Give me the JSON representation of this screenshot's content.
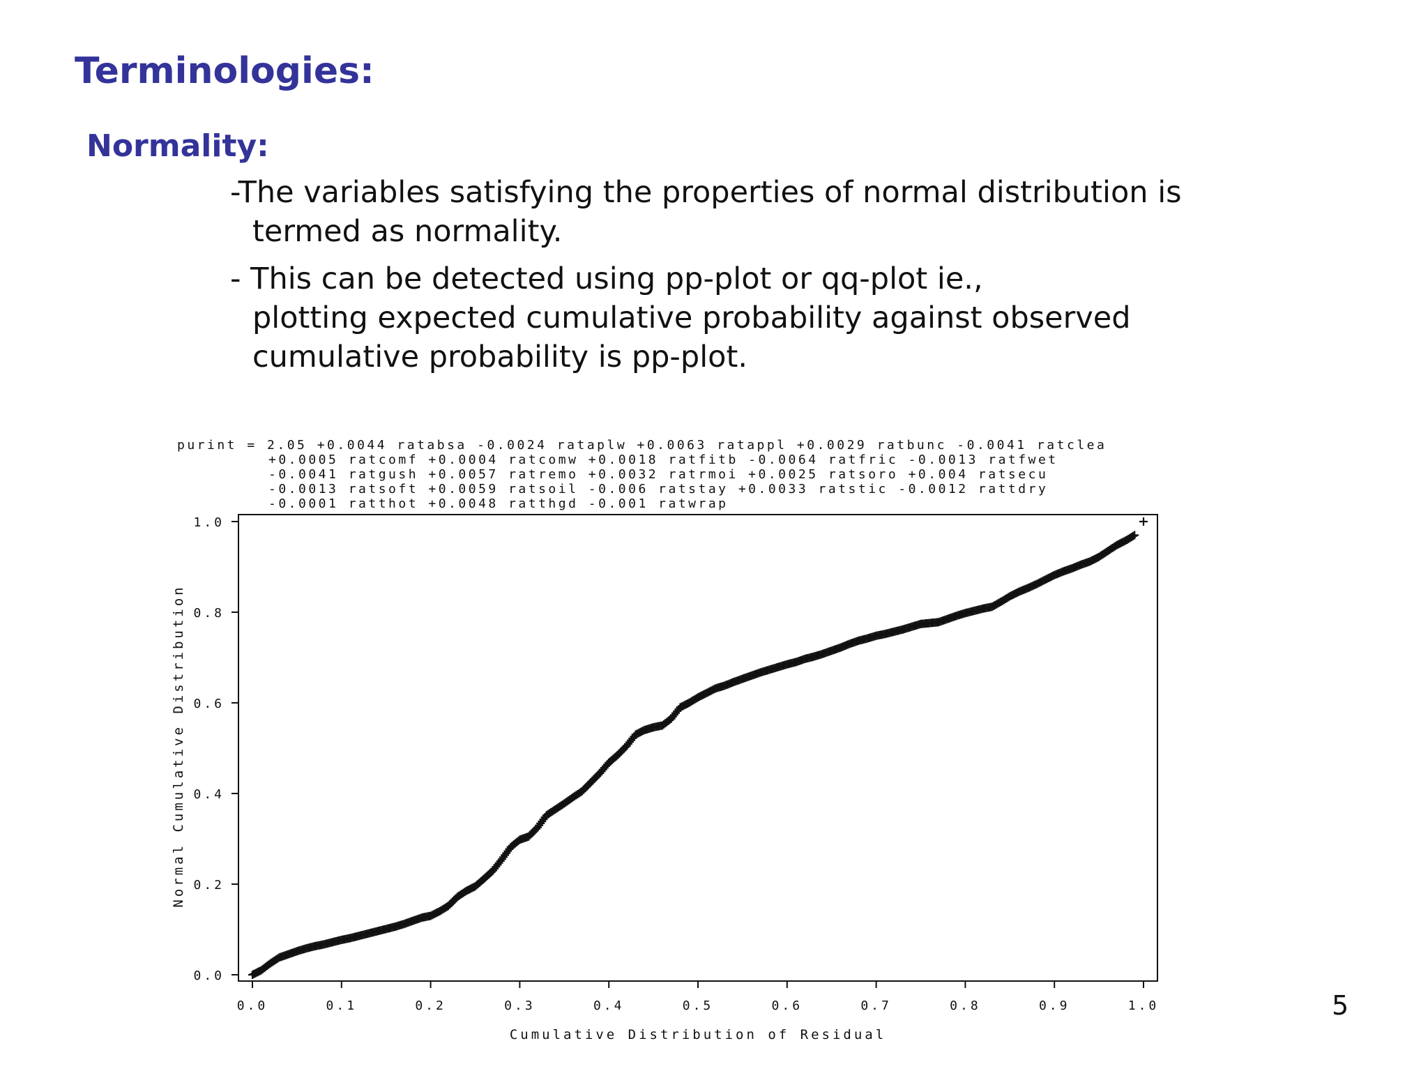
{
  "slide": {
    "title": "Terminologies:",
    "subtitle": "Normality:",
    "bullets": [
      {
        "line1": "-The variables satisfying the properties of normal distribution is",
        "line2": "termed as normality."
      },
      {
        "line1": "- This can be detected using pp-plot or qq-plot ie.,",
        "line2": "plotting expected cumulative probability against observed",
        "line3": "cumulative probability is pp-plot."
      }
    ],
    "page_number": "5"
  },
  "chart_data": {
    "type": "scatter",
    "marker": "+",
    "equation_lines": [
      "purint = 2.05 +0.0044 ratabsa -0.0024 rataplw +0.0063 ratappl +0.0029 ratbunc -0.0041 ratclea",
      "+0.0005 ratcomf +0.0004 ratcomw +0.0018 ratfitb -0.0064 ratfric -0.0013 ratfwet",
      "-0.0041 ratgush +0.0057 ratremo +0.0032 ratrmoi +0.0025 ratsoro +0.004 ratsecu",
      "-0.0013 ratsoft +0.0059 ratsoil -0.006 ratstay +0.0033 ratstic -0.0012 rattdry",
      "-0.0001 ratthot +0.0048 ratthgd -0.001 ratwrap"
    ],
    "xlabel": "Cumulative Distribution of Residual",
    "ylabel": "Normal Cumulative Distribution",
    "xlim": [
      0.0,
      1.0
    ],
    "ylim": [
      0.0,
      1.0
    ],
    "x_ticks": [
      "0.0",
      "0.1",
      "0.2",
      "0.3",
      "0.4",
      "0.5",
      "0.6",
      "0.7",
      "0.8",
      "0.9",
      "1.0"
    ],
    "y_ticks": [
      "0.0",
      "0.2",
      "0.4",
      "0.6",
      "0.8",
      "1.0"
    ],
    "curve_points": [
      [
        0.0,
        0.0
      ],
      [
        0.01,
        0.01
      ],
      [
        0.02,
        0.025
      ],
      [
        0.03,
        0.038
      ],
      [
        0.04,
        0.045
      ],
      [
        0.05,
        0.052
      ],
      [
        0.06,
        0.058
      ],
      [
        0.07,
        0.063
      ],
      [
        0.08,
        0.067
      ],
      [
        0.09,
        0.072
      ],
      [
        0.1,
        0.077
      ],
      [
        0.11,
        0.081
      ],
      [
        0.12,
        0.086
      ],
      [
        0.13,
        0.091
      ],
      [
        0.14,
        0.096
      ],
      [
        0.15,
        0.101
      ],
      [
        0.16,
        0.106
      ],
      [
        0.17,
        0.112
      ],
      [
        0.18,
        0.119
      ],
      [
        0.19,
        0.126
      ],
      [
        0.2,
        0.13
      ],
      [
        0.21,
        0.14
      ],
      [
        0.22,
        0.152
      ],
      [
        0.23,
        0.172
      ],
      [
        0.24,
        0.185
      ],
      [
        0.25,
        0.195
      ],
      [
        0.26,
        0.212
      ],
      [
        0.27,
        0.23
      ],
      [
        0.28,
        0.255
      ],
      [
        0.29,
        0.282
      ],
      [
        0.3,
        0.298
      ],
      [
        0.31,
        0.305
      ],
      [
        0.32,
        0.325
      ],
      [
        0.33,
        0.352
      ],
      [
        0.34,
        0.365
      ],
      [
        0.35,
        0.378
      ],
      [
        0.36,
        0.392
      ],
      [
        0.37,
        0.405
      ],
      [
        0.38,
        0.425
      ],
      [
        0.39,
        0.445
      ],
      [
        0.4,
        0.468
      ],
      [
        0.41,
        0.485
      ],
      [
        0.42,
        0.505
      ],
      [
        0.43,
        0.53
      ],
      [
        0.44,
        0.54
      ],
      [
        0.45,
        0.546
      ],
      [
        0.46,
        0.55
      ],
      [
        0.47,
        0.565
      ],
      [
        0.48,
        0.59
      ],
      [
        0.49,
        0.6
      ],
      [
        0.5,
        0.612
      ],
      [
        0.51,
        0.622
      ],
      [
        0.52,
        0.632
      ],
      [
        0.53,
        0.638
      ],
      [
        0.54,
        0.646
      ],
      [
        0.55,
        0.653
      ],
      [
        0.56,
        0.66
      ],
      [
        0.57,
        0.667
      ],
      [
        0.58,
        0.673
      ],
      [
        0.59,
        0.679
      ],
      [
        0.6,
        0.685
      ],
      [
        0.61,
        0.69
      ],
      [
        0.62,
        0.697
      ],
      [
        0.63,
        0.702
      ],
      [
        0.64,
        0.708
      ],
      [
        0.65,
        0.715
      ],
      [
        0.66,
        0.722
      ],
      [
        0.67,
        0.73
      ],
      [
        0.68,
        0.737
      ],
      [
        0.69,
        0.742
      ],
      [
        0.7,
        0.748
      ],
      [
        0.71,
        0.752
      ],
      [
        0.72,
        0.757
      ],
      [
        0.73,
        0.762
      ],
      [
        0.74,
        0.768
      ],
      [
        0.75,
        0.774
      ],
      [
        0.76,
        0.776
      ],
      [
        0.77,
        0.778
      ],
      [
        0.78,
        0.785
      ],
      [
        0.79,
        0.792
      ],
      [
        0.8,
        0.798
      ],
      [
        0.81,
        0.803
      ],
      [
        0.82,
        0.808
      ],
      [
        0.83,
        0.812
      ],
      [
        0.84,
        0.823
      ],
      [
        0.85,
        0.835
      ],
      [
        0.86,
        0.845
      ],
      [
        0.87,
        0.853
      ],
      [
        0.88,
        0.862
      ],
      [
        0.89,
        0.872
      ],
      [
        0.9,
        0.882
      ],
      [
        0.91,
        0.89
      ],
      [
        0.92,
        0.897
      ],
      [
        0.93,
        0.905
      ],
      [
        0.94,
        0.912
      ],
      [
        0.95,
        0.922
      ],
      [
        0.96,
        0.935
      ],
      [
        0.97,
        0.948
      ],
      [
        0.98,
        0.958
      ],
      [
        0.99,
        0.97
      ],
      [
        1.0,
        1.0
      ]
    ]
  }
}
